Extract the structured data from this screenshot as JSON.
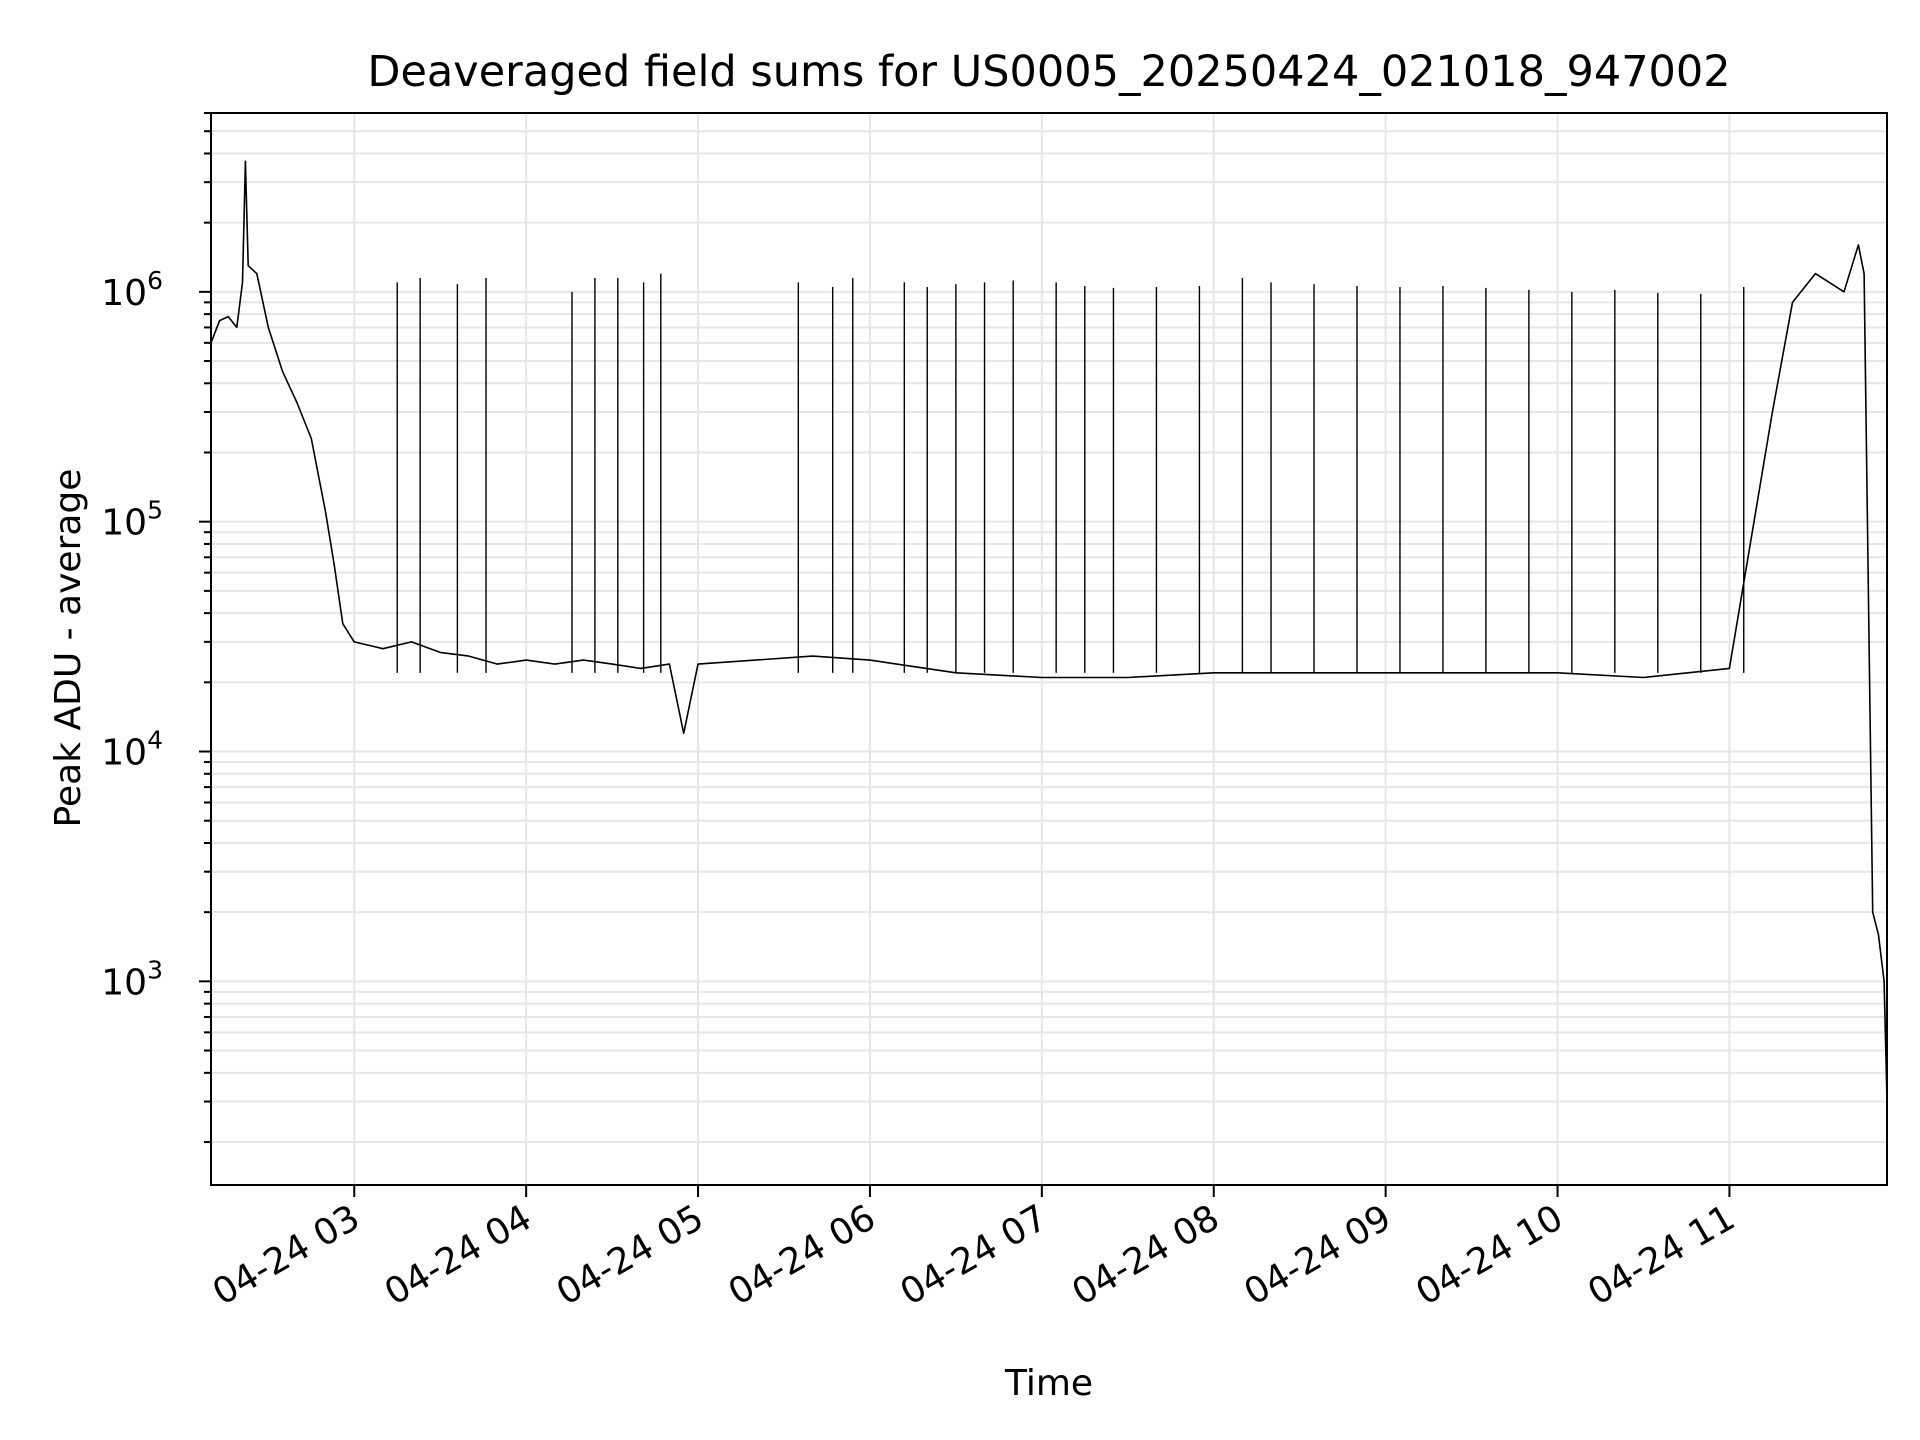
{
  "chart_data": {
    "type": "line",
    "title": "Deaveraged field sums for US0005_20250424_021018_947002",
    "xlabel": "Time",
    "ylabel": "Peak ADU - average",
    "y_scale": "log",
    "ylim": [
      130,
      6000000
    ],
    "xlim": [
      "04-24 02:10",
      "04-24 11:55"
    ],
    "x_tick_labels": [
      "04-24 03",
      "04-24 04",
      "04-24 05",
      "04-24 06",
      "04-24 07",
      "04-24 08",
      "04-24 09",
      "04-24 10",
      "04-24 11"
    ],
    "x_tick_times": [
      "04-24 03:00",
      "04-24 04:00",
      "04-24 05:00",
      "04-24 06:00",
      "04-24 07:00",
      "04-24 08:00",
      "04-24 09:00",
      "04-24 10:00",
      "04-24 11:00"
    ],
    "y_tick_labels": [
      {
        "base": "10",
        "exp": "3",
        "value": 1000
      },
      {
        "base": "10",
        "exp": "4",
        "value": 10000
      },
      {
        "base": "10",
        "exp": "5",
        "value": 100000
      },
      {
        "base": "10",
        "exp": "6",
        "value": 1000000
      }
    ],
    "grid": true,
    "line_color": "#000000",
    "grid_color": "#e6e6e6",
    "series": [
      {
        "values": [
          [
            "04-24 02:10",
            600000
          ],
          [
            "04-24 02:13",
            750000
          ],
          [
            "04-24 02:16",
            780000
          ],
          [
            "04-24 02:19",
            700000
          ],
          [
            "04-24 02:21",
            1100000
          ],
          [
            "04-24 02:22",
            3700000
          ],
          [
            "04-24 02:23",
            1300000
          ],
          [
            "04-24 02:26",
            1200000
          ],
          [
            "04-24 02:30",
            700000
          ],
          [
            "04-24 02:35",
            450000
          ],
          [
            "04-24 02:40",
            330000
          ],
          [
            "04-24 02:45",
            230000
          ],
          [
            "04-24 02:50",
            110000
          ],
          [
            "04-24 02:53",
            65000
          ],
          [
            "04-24 02:56",
            36000
          ],
          [
            "04-24 03:00",
            30000
          ],
          [
            "04-24 03:10",
            28000
          ],
          [
            "04-24 03:20",
            30000
          ],
          [
            "04-24 03:30",
            27000
          ],
          [
            "04-24 03:40",
            26000
          ],
          [
            "04-24 03:50",
            24000
          ],
          [
            "04-24 04:00",
            25000
          ],
          [
            "04-24 04:10",
            24000
          ],
          [
            "04-24 04:20",
            25000
          ],
          [
            "04-24 04:30",
            24000
          ],
          [
            "04-24 04:40",
            23000
          ],
          [
            "04-24 04:50",
            24000
          ],
          [
            "04-24 04:55",
            12000
          ],
          [
            "04-24 05:00",
            24000
          ],
          [
            "04-24 05:20",
            25000
          ],
          [
            "04-24 05:40",
            26000
          ],
          [
            "04-24 06:00",
            25000
          ],
          [
            "04-24 06:30",
            22000
          ],
          [
            "04-24 07:00",
            21000
          ],
          [
            "04-24 07:30",
            21000
          ],
          [
            "04-24 08:00",
            22000
          ],
          [
            "04-24 08:30",
            22000
          ],
          [
            "04-24 09:00",
            22000
          ],
          [
            "04-24 09:30",
            22000
          ],
          [
            "04-24 10:00",
            22000
          ],
          [
            "04-24 10:30",
            21000
          ],
          [
            "04-24 11:00",
            23000
          ],
          [
            "04-24 11:15",
            300000
          ],
          [
            "04-24 11:22",
            900000
          ],
          [
            "04-24 11:30",
            1200000
          ],
          [
            "04-24 11:40",
            1000000
          ],
          [
            "04-24 11:45",
            1600000
          ],
          [
            "04-24 11:47",
            1200000
          ],
          [
            "04-24 11:50",
            2000
          ],
          [
            "04-24 11:52",
            1600
          ],
          [
            "04-24 11:54",
            1000
          ],
          [
            "04-24 11:55",
            300
          ]
        ]
      }
    ],
    "spikes": [
      {
        "x": "04-24 03:15",
        "y": 1100000
      },
      {
        "x": "04-24 03:23",
        "y": 1150000
      },
      {
        "x": "04-24 03:36",
        "y": 1080000
      },
      {
        "x": "04-24 03:46",
        "y": 1150000
      },
      {
        "x": "04-24 04:16",
        "y": 1000000
      },
      {
        "x": "04-24 04:24",
        "y": 1150000
      },
      {
        "x": "04-24 04:32",
        "y": 1150000
      },
      {
        "x": "04-24 04:41",
        "y": 1100000
      },
      {
        "x": "04-24 04:47",
        "y": 1200000
      },
      {
        "x": "04-24 05:35",
        "y": 1100000
      },
      {
        "x": "04-24 05:47",
        "y": 1050000
      },
      {
        "x": "04-24 05:54",
        "y": 1150000
      },
      {
        "x": "04-24 06:12",
        "y": 1100000
      },
      {
        "x": "04-24 06:20",
        "y": 1050000
      },
      {
        "x": "04-24 06:30",
        "y": 1080000
      },
      {
        "x": "04-24 06:40",
        "y": 1100000
      },
      {
        "x": "04-24 06:50",
        "y": 1120000
      },
      {
        "x": "04-24 07:05",
        "y": 1100000
      },
      {
        "x": "04-24 07:15",
        "y": 1060000
      },
      {
        "x": "04-24 07:25",
        "y": 1040000
      },
      {
        "x": "04-24 07:40",
        "y": 1050000
      },
      {
        "x": "04-24 07:55",
        "y": 1060000
      },
      {
        "x": "04-24 08:10",
        "y": 1150000
      },
      {
        "x": "04-24 08:20",
        "y": 1100000
      },
      {
        "x": "04-24 08:35",
        "y": 1080000
      },
      {
        "x": "04-24 08:50",
        "y": 1060000
      },
      {
        "x": "04-24 09:05",
        "y": 1050000
      },
      {
        "x": "04-24 09:20",
        "y": 1060000
      },
      {
        "x": "04-24 09:35",
        "y": 1040000
      },
      {
        "x": "04-24 09:50",
        "y": 1020000
      },
      {
        "x": "04-24 10:05",
        "y": 1000000
      },
      {
        "x": "04-24 10:20",
        "y": 1020000
      },
      {
        "x": "04-24 10:35",
        "y": 990000
      },
      {
        "x": "04-24 10:50",
        "y": 980000
      },
      {
        "x": "04-24 11:05",
        "y": 1050000
      }
    ]
  }
}
